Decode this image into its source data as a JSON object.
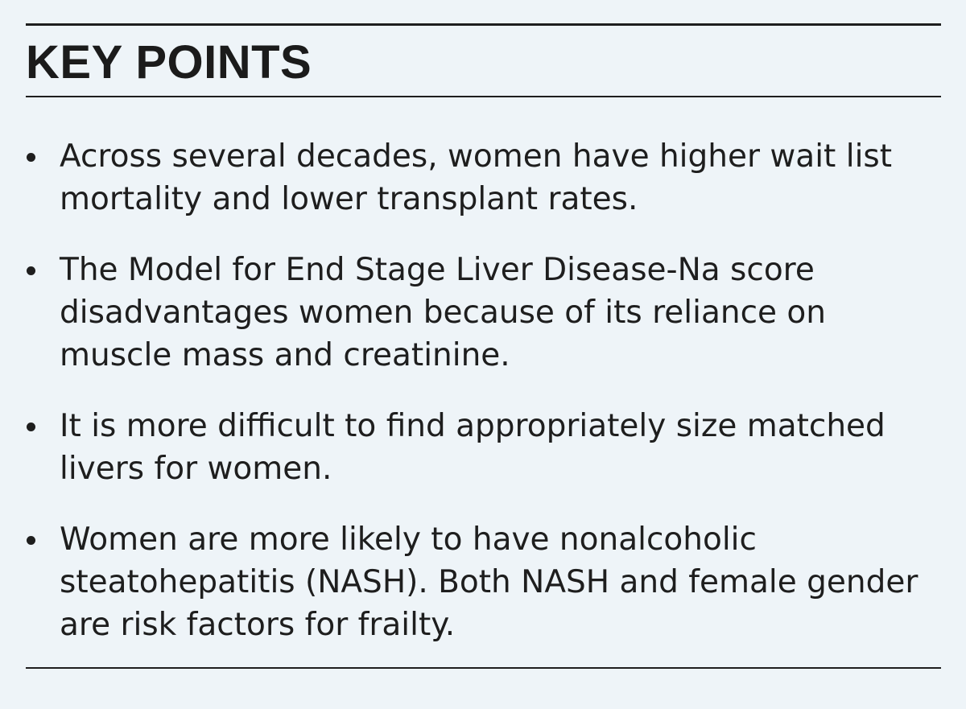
{
  "box": {
    "heading": "KEY POINTS",
    "points": [
      "Across several decades, women have higher wait list mortality and lower transplant rates.",
      "The Model for End Stage Liver Disease-Na score disadvantages women because of its reliance on muscle mass and creatinine.",
      "It is more difficult to find appropriately size matched livers for women.",
      "Women are more likely to have nonalcoholic steatohepatitis (NASH). Both NASH and female gender are risk factors for frailty."
    ]
  },
  "colors": {
    "background": "#eef4f8",
    "text": "#1e1e1e",
    "rules": "#1e1e1e"
  }
}
